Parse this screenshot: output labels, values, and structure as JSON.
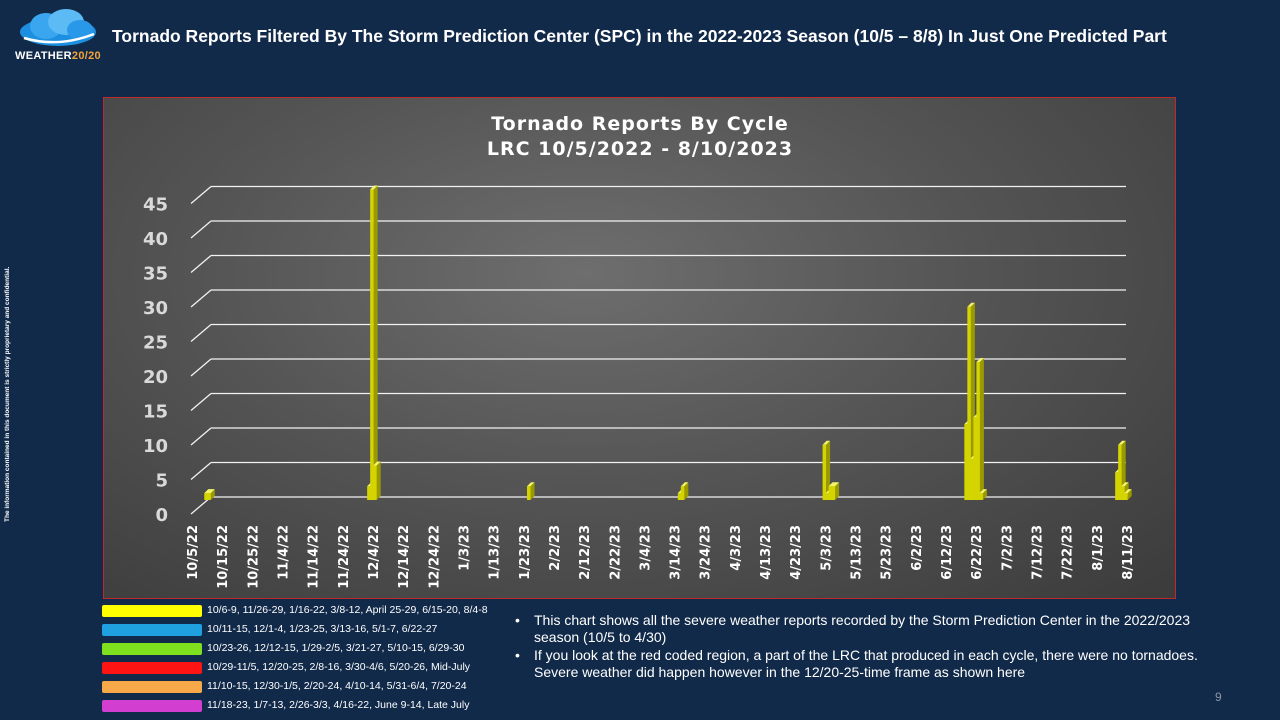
{
  "header": {
    "logo_text_main": "WEATHER",
    "logo_text_accent": "20/20",
    "title": "Tornado Reports Filtered By The Storm Prediction Center (SPC) in the 2022-2023 Season (10/5 – 8/8) In Just One Predicted Part"
  },
  "side_note": "The information contained in this document is strictly proprietary and confidential.",
  "chart_data": {
    "type": "bar",
    "title": "Tornado Reports By Cycle",
    "subtitle": "LRC 10/5/2022 - 8/10/2023",
    "xlabel": "",
    "ylabel": "",
    "ylim": [
      0,
      45
    ],
    "yticks": [
      0,
      5,
      10,
      15,
      20,
      25,
      30,
      35,
      40,
      45
    ],
    "grid": true,
    "legend": "none",
    "bar_color": "#d4d400",
    "categories": [
      "10/5/22",
      "10/15/22",
      "10/25/22",
      "11/4/22",
      "11/14/22",
      "11/24/22",
      "12/4/22",
      "12/14/22",
      "12/24/22",
      "1/3/23",
      "1/13/23",
      "1/23/23",
      "2/2/23",
      "2/12/23",
      "2/22/23",
      "3/4/23",
      "3/14/23",
      "3/24/23",
      "4/3/23",
      "4/13/23",
      "4/23/23",
      "5/3/23",
      "5/13/23",
      "5/23/23",
      "6/2/23",
      "6/12/23",
      "6/22/23",
      "7/2/23",
      "7/12/23",
      "7/22/23",
      "8/1/23",
      "8/11/23"
    ],
    "points": [
      {
        "date": "10/6/22",
        "value": 1
      },
      {
        "date": "10/7/22",
        "value": 1
      },
      {
        "date": "11/29/22",
        "value": 2
      },
      {
        "date": "11/30/22",
        "value": 45
      },
      {
        "date": "12/1/22",
        "value": 5
      },
      {
        "date": "1/21/23",
        "value": 2
      },
      {
        "date": "3/12/23",
        "value": 1
      },
      {
        "date": "3/13/23",
        "value": 2
      },
      {
        "date": "4/29/23",
        "value": 8
      },
      {
        "date": "4/30/23",
        "value": 1
      },
      {
        "date": "5/1/23",
        "value": 2
      },
      {
        "date": "5/2/23",
        "value": 2
      },
      {
        "date": "6/15/23",
        "value": 11
      },
      {
        "date": "6/16/23",
        "value": 28
      },
      {
        "date": "6/17/23",
        "value": 6
      },
      {
        "date": "6/18/23",
        "value": 12
      },
      {
        "date": "6/19/23",
        "value": 20
      },
      {
        "date": "6/20/23",
        "value": 1
      },
      {
        "date": "8/4/23",
        "value": 4
      },
      {
        "date": "8/5/23",
        "value": 8
      },
      {
        "date": "8/6/23",
        "value": 2
      },
      {
        "date": "8/7/23",
        "value": 1
      }
    ]
  },
  "legend": [
    {
      "color": "#ffff00",
      "label": "10/6-9, 11/26-29, 1/16-22, 3/8-12, April 25-29,  6/15-20, 8/4-8"
    },
    {
      "color": "#1fa1e0",
      "label": "10/11-15, 12/1-4, 1/23-25, 3/13-16, 5/1-7, 6/22-27"
    },
    {
      "color": "#7fe01e",
      "label": "10/23-26, 12/12-15, 1/29-2/5, 3/21-27, 5/10-15, 6/29-30"
    },
    {
      "color": "#ff1414",
      "label": "10/29-11/5, 12/20-25, 2/8-16, 3/30-4/6, 5/20-26, Mid-July"
    },
    {
      "color": "#f7a94a",
      "label": "11/10-15, 12/30-1/5, 2/20-24, 4/10-14, 5/31-6/4, 7/20-24"
    },
    {
      "color": "#d23fd0",
      "label": "11/18-23, 1/7-13, 2/26-3/3, 4/16-22, June 9-14, Late July"
    }
  ],
  "notes": [
    {
      "bullet": "•",
      "text": "This chart shows all the severe weather reports recorded by the Storm Prediction Center in the 2022/2023 season (10/5 to 4/30)"
    },
    {
      "bullet": "•",
      "text": "If you look at the red coded region, a part of the LRC that produced in each cycle, there were no tornadoes.  Severe weather did happen however in the 12/20-25-time frame as shown here"
    }
  ],
  "page_number": "9"
}
